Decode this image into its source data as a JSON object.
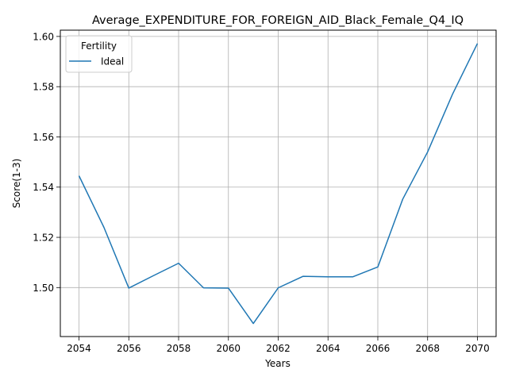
{
  "chart_data": {
    "type": "line",
    "title": "Average_EXPENDITURE_FOR_FOREIGN_AID_Black_Female_Q4_IQ",
    "xlabel": "Years",
    "ylabel": "Score(1-3)",
    "xlim": [
      2053.25,
      2070.75
    ],
    "ylim": [
      1.4805,
      1.6025
    ],
    "xticks": [
      2054,
      2056,
      2058,
      2060,
      2062,
      2064,
      2066,
      2068,
      2070
    ],
    "xtick_labels": [
      "2054",
      "2056",
      "2058",
      "2060",
      "2062",
      "2064",
      "2066",
      "2068",
      "2070"
    ],
    "yticks": [
      1.5,
      1.52,
      1.54,
      1.56,
      1.58,
      1.6
    ],
    "ytick_labels": [
      "1.50",
      "1.52",
      "1.54",
      "1.56",
      "1.58",
      "1.60"
    ],
    "grid": true,
    "legend": {
      "title": "Fertility",
      "placement": "upper-left"
    },
    "series": [
      {
        "name": "Ideal",
        "color": "#1f77b4",
        "x": [
          2054,
          2055,
          2056,
          2057,
          2058,
          2059,
          2060,
          2061,
          2062,
          2063,
          2064,
          2065,
          2066,
          2067,
          2068,
          2069,
          2070
        ],
        "y": [
          1.5445,
          1.524,
          1.4998,
          1.5048,
          1.5097,
          1.4999,
          1.4998,
          1.4857,
          1.4999,
          1.5045,
          1.5043,
          1.5043,
          1.5082,
          1.5352,
          1.554,
          1.577,
          1.5972
        ]
      }
    ]
  }
}
